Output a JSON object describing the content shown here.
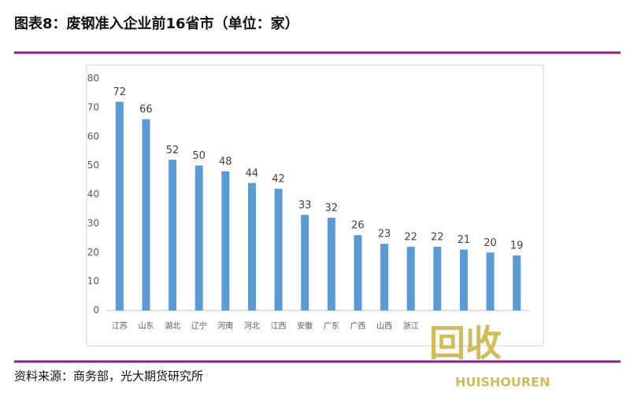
{
  "chart_data": {
    "type": "bar",
    "title": "图表8：废钢准入企业前16省市（单位：家）",
    "categories": [
      "江苏",
      "山东",
      "湖北",
      "辽宁",
      "河南",
      "河北",
      "江西",
      "安徽",
      "广东",
      "广西",
      "山西",
      "浙江",
      null,
      null,
      null,
      null
    ],
    "values": [
      72,
      66,
      52,
      50,
      48,
      44,
      42,
      33,
      32,
      26,
      23,
      22,
      22,
      21,
      20,
      19
    ],
    "color": "#5b9bd5",
    "ylim": [
      0,
      80
    ],
    "yticks": [
      0,
      10,
      20,
      30,
      40,
      50,
      60,
      70,
      80
    ],
    "grid": false,
    "source": "资料来源：商务部，光大期货研究所"
  },
  "watermark": {
    "text": "回收",
    "subtext": "HUISHOUREN"
  }
}
